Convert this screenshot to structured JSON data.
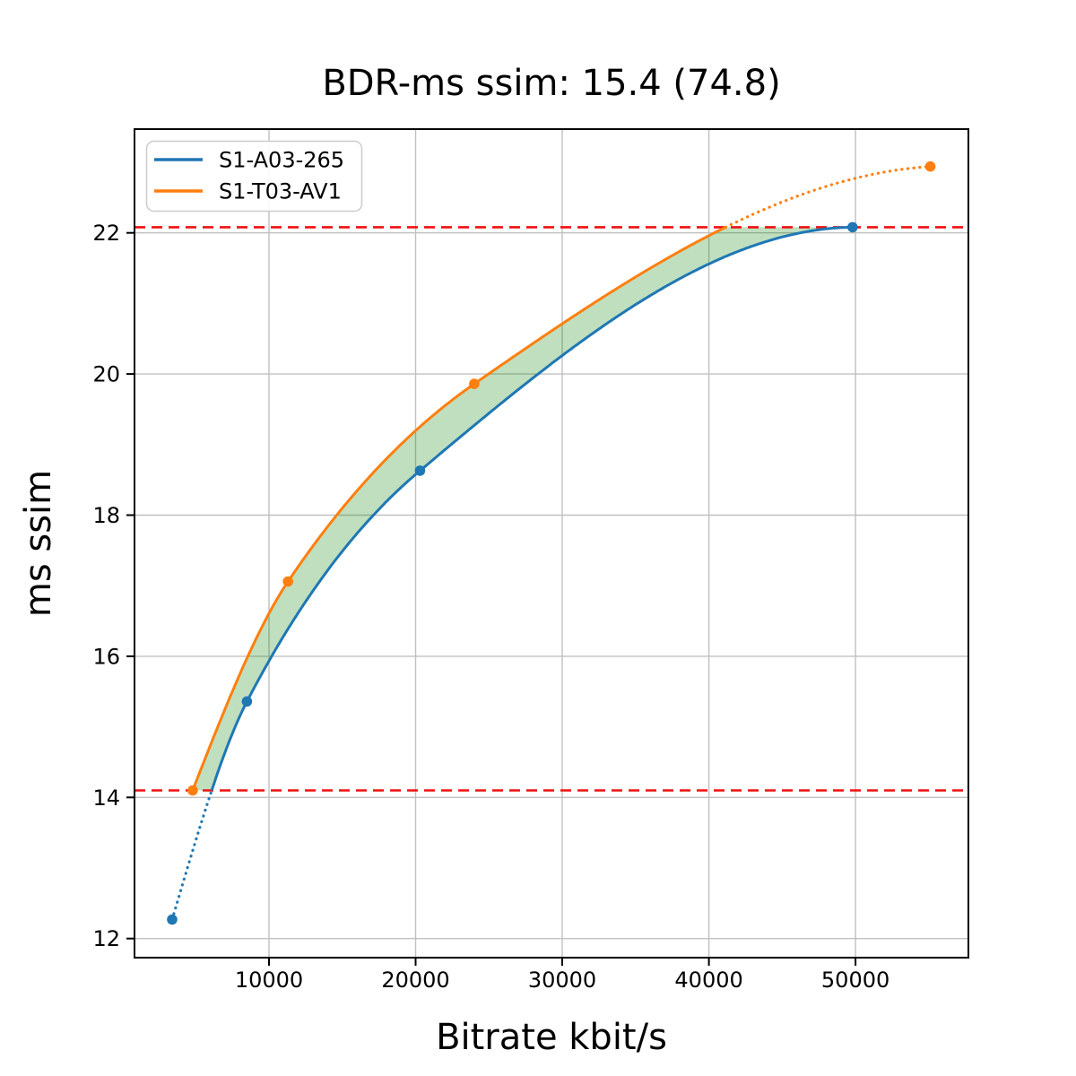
{
  "figure": {
    "background": "#ffffff"
  },
  "chart_data": {
    "type": "line",
    "title": "BDR-ms ssim: 15.4 (74.8)",
    "xlabel": "Bitrate kbit/s",
    "ylabel": "ms ssim",
    "xlim": [
      830,
      57700
    ],
    "ylim": [
      11.73,
      23.47
    ],
    "x_ticks": [
      10000,
      20000,
      30000,
      40000,
      50000
    ],
    "y_ticks": [
      12,
      14,
      16,
      18,
      20,
      22
    ],
    "grid": true,
    "legend_position": "upper left",
    "series": [
      {
        "name": "S1-A03-265",
        "color": "#1f77b4",
        "x": [
          3400,
          8500,
          20300,
          49800
        ],
        "y": [
          12.27,
          15.36,
          18.63,
          22.08
        ]
      },
      {
        "name": "S1-T03-AV1",
        "color": "#ff7f0e",
        "x": [
          4800,
          11300,
          24000,
          55100
        ],
        "y": [
          14.1,
          17.06,
          19.86,
          22.94
        ]
      }
    ],
    "bd_bounds": {
      "lower": 14.1,
      "upper": 22.08,
      "color": "#ee1111"
    },
    "shade": {
      "color": "#008000",
      "opacity": 0.25
    },
    "interpolation": "pchip"
  }
}
